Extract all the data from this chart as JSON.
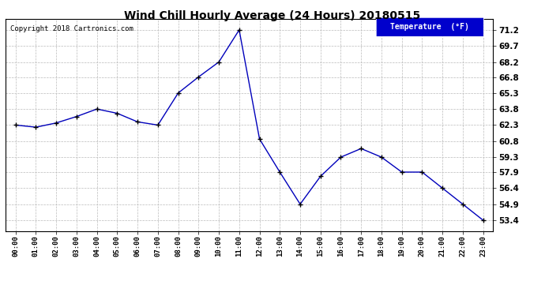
{
  "title": "Wind Chill Hourly Average (24 Hours) 20180515",
  "copyright": "Copyright 2018 Cartronics.com",
  "legend_label": "Temperature  (°F)",
  "hours": [
    "00:00",
    "01:00",
    "02:00",
    "03:00",
    "04:00",
    "05:00",
    "06:00",
    "07:00",
    "08:00",
    "09:00",
    "10:00",
    "11:00",
    "12:00",
    "13:00",
    "14:00",
    "15:00",
    "16:00",
    "17:00",
    "18:00",
    "19:00",
    "20:00",
    "21:00",
    "22:00",
    "23:00"
  ],
  "values": [
    62.3,
    62.1,
    62.5,
    63.1,
    63.8,
    63.4,
    62.6,
    62.3,
    65.3,
    66.8,
    68.2,
    71.2,
    61.0,
    57.9,
    54.9,
    57.5,
    59.3,
    60.1,
    59.3,
    57.9,
    57.9,
    56.4,
    54.9,
    53.4
  ],
  "yticks": [
    53.4,
    54.9,
    56.4,
    57.9,
    59.3,
    60.8,
    62.3,
    63.8,
    65.3,
    66.8,
    68.2,
    69.7,
    71.2
  ],
  "ymin": 52.4,
  "ymax": 72.2,
  "line_color": "#0000bb",
  "marker_color": "#000000",
  "bg_color": "#ffffff",
  "plot_bg_color": "#ffffff",
  "grid_color": "#bbbbbb",
  "legend_bg": "#0000cc",
  "legend_text_color": "#ffffff",
  "title_color": "#000000",
  "copyright_color": "#000000"
}
